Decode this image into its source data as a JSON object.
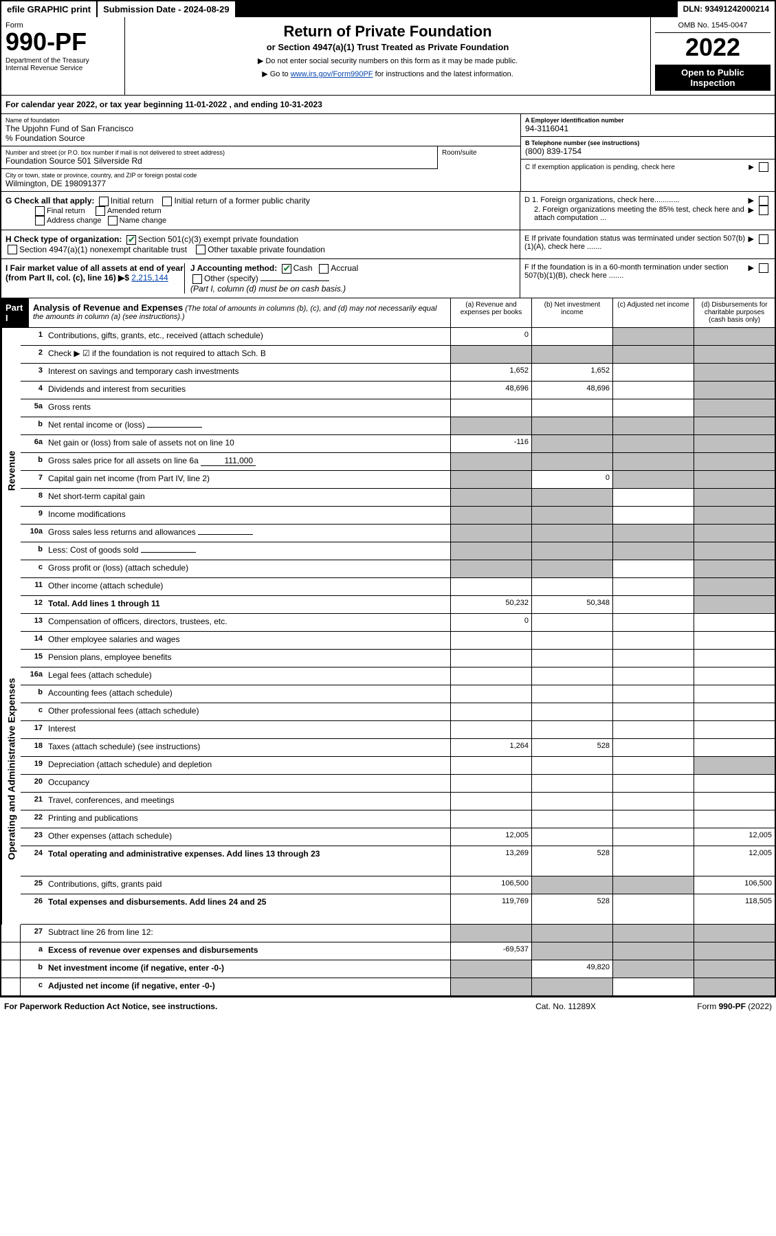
{
  "topbar": {
    "efile": "efile GRAPHIC print",
    "submission": "Submission Date - 2024-08-29",
    "dln": "DLN: 93491242000214"
  },
  "header": {
    "form_label": "Form",
    "form_num": "990-PF",
    "dept": "Department of the Treasury\nInternal Revenue Service",
    "title": "Return of Private Foundation",
    "subtitle": "or Section 4947(a)(1) Trust Treated as Private Foundation",
    "note1": "▶ Do not enter social security numbers on this form as it may be made public.",
    "note2_pre": "▶ Go to ",
    "note2_link": "www.irs.gov/Form990PF",
    "note2_post": " for instructions and the latest information.",
    "omb": "OMB No. 1545-0047",
    "year": "2022",
    "inspect": "Open to Public Inspection"
  },
  "cal_year": "For calendar year 2022, or tax year beginning 11-01-2022          , and ending 10-31-2023",
  "info": {
    "name_label": "Name of foundation",
    "name": "The Upjohn Fund of San Francisco",
    "source": "% Foundation Source",
    "addr_label": "Number and street (or P.O. box number if mail is not delivered to street address)",
    "addr": "Foundation Source 501 Silverside Rd",
    "room_label": "Room/suite",
    "city_label": "City or town, state or province, country, and ZIP or foreign postal code",
    "city": "Wilmington, DE  198091377",
    "ein_label": "A Employer identification number",
    "ein": "94-3116041",
    "phone_label": "B Telephone number (see instructions)",
    "phone": "(800) 839-1754",
    "c_label": "C If exemption application is pending, check here"
  },
  "checks": {
    "g_label": "G Check all that apply:",
    "g1": "Initial return",
    "g2": "Initial return of a former public charity",
    "g3": "Final return",
    "g4": "Amended return",
    "g5": "Address change",
    "g6": "Name change",
    "h_label": "H Check type of organization:",
    "h1": "Section 501(c)(3) exempt private foundation",
    "h2": "Section 4947(a)(1) nonexempt charitable trust",
    "h3": "Other taxable private foundation",
    "i_label": "I Fair market value of all assets at end of year (from Part II, col. (c), line 16) ▶$ ",
    "i_val": "2,215,144",
    "j_label": "J Accounting method:",
    "j1": "Cash",
    "j2": "Accrual",
    "j3": "Other (specify)",
    "j_note": "(Part I, column (d) must be on cash basis.)",
    "d1": "D 1. Foreign organizations, check here............",
    "d2": "2. Foreign organizations meeting the 85% test, check here and attach computation ...",
    "e": "E  If private foundation status was terminated under section 507(b)(1)(A), check here .......",
    "f": "F  If the foundation is in a 60-month termination under section 507(b)(1)(B), check here ......."
  },
  "part1": {
    "label": "Part I",
    "title": "Analysis of Revenue and Expenses",
    "title_note": "(The total of amounts in columns (b), (c), and (d) may not necessarily equal the amounts in column (a) (see instructions).)",
    "col_a": "(a) Revenue and expenses per books",
    "col_b": "(b) Net investment income",
    "col_c": "(c) Adjusted net income",
    "col_d": "(d) Disbursements for charitable purposes (cash basis only)"
  },
  "sections": {
    "revenue": "Revenue",
    "expenses": "Operating and Administrative Expenses"
  },
  "lines": [
    {
      "n": "1",
      "d": "Contributions, gifts, grants, etc., received (attach schedule)",
      "a": "0",
      "b": "",
      "c": "s",
      "ds": "s"
    },
    {
      "n": "2",
      "d": "Check ▶ ☑ if the foundation is not required to attach Sch. B",
      "a": "s",
      "b": "s",
      "c": "s",
      "ds": "s",
      "nodots": true
    },
    {
      "n": "3",
      "d": "Interest on savings and temporary cash investments",
      "a": "1,652",
      "b": "1,652",
      "c": "",
      "ds": "s"
    },
    {
      "n": "4",
      "d": "Dividends and interest from securities",
      "a": "48,696",
      "b": "48,696",
      "c": "",
      "ds": "s"
    },
    {
      "n": "5a",
      "d": "Gross rents",
      "a": "",
      "b": "",
      "c": "",
      "ds": "s"
    },
    {
      "n": "b",
      "d": "Net rental income or (loss)",
      "a": "s",
      "b": "s",
      "c": "s",
      "ds": "s",
      "inline": true
    },
    {
      "n": "6a",
      "d": "Net gain or (loss) from sale of assets not on line 10",
      "a": "-116",
      "b": "s",
      "c": "s",
      "ds": "s"
    },
    {
      "n": "b",
      "d": "Gross sales price for all assets on line 6a",
      "a": "s",
      "b": "s",
      "c": "s",
      "ds": "s",
      "inline": true,
      "inline_val": "111,000"
    },
    {
      "n": "7",
      "d": "Capital gain net income (from Part IV, line 2)",
      "a": "s",
      "b": "0",
      "c": "s",
      "ds": "s"
    },
    {
      "n": "8",
      "d": "Net short-term capital gain",
      "a": "s",
      "b": "s",
      "c": "",
      "ds": "s"
    },
    {
      "n": "9",
      "d": "Income modifications",
      "a": "s",
      "b": "s",
      "c": "",
      "ds": "s"
    },
    {
      "n": "10a",
      "d": "Gross sales less returns and allowances",
      "a": "s",
      "b": "s",
      "c": "s",
      "ds": "s",
      "inline": true
    },
    {
      "n": "b",
      "d": "Less: Cost of goods sold",
      "a": "s",
      "b": "s",
      "c": "s",
      "ds": "s",
      "inline": true
    },
    {
      "n": "c",
      "d": "Gross profit or (loss) (attach schedule)",
      "a": "s",
      "b": "s",
      "c": "",
      "ds": "s"
    },
    {
      "n": "11",
      "d": "Other income (attach schedule)",
      "a": "",
      "b": "",
      "c": "",
      "ds": "s"
    },
    {
      "n": "12",
      "d": "Total. Add lines 1 through 11",
      "a": "50,232",
      "b": "50,348",
      "c": "",
      "ds": "s",
      "bold": true
    }
  ],
  "exp_lines": [
    {
      "n": "13",
      "d": "Compensation of officers, directors, trustees, etc.",
      "a": "0",
      "b": "",
      "c": "",
      "ds": ""
    },
    {
      "n": "14",
      "d": "Other employee salaries and wages",
      "a": "",
      "b": "",
      "c": "",
      "ds": ""
    },
    {
      "n": "15",
      "d": "Pension plans, employee benefits",
      "a": "",
      "b": "",
      "c": "",
      "ds": ""
    },
    {
      "n": "16a",
      "d": "Legal fees (attach schedule)",
      "a": "",
      "b": "",
      "c": "",
      "ds": ""
    },
    {
      "n": "b",
      "d": "Accounting fees (attach schedule)",
      "a": "",
      "b": "",
      "c": "",
      "ds": ""
    },
    {
      "n": "c",
      "d": "Other professional fees (attach schedule)",
      "a": "",
      "b": "",
      "c": "",
      "ds": ""
    },
    {
      "n": "17",
      "d": "Interest",
      "a": "",
      "b": "",
      "c": "",
      "ds": ""
    },
    {
      "n": "18",
      "d": "Taxes (attach schedule) (see instructions)",
      "a": "1,264",
      "b": "528",
      "c": "",
      "ds": ""
    },
    {
      "n": "19",
      "d": "Depreciation (attach schedule) and depletion",
      "a": "",
      "b": "",
      "c": "",
      "ds": "s"
    },
    {
      "n": "20",
      "d": "Occupancy",
      "a": "",
      "b": "",
      "c": "",
      "ds": ""
    },
    {
      "n": "21",
      "d": "Travel, conferences, and meetings",
      "a": "",
      "b": "",
      "c": "",
      "ds": ""
    },
    {
      "n": "22",
      "d": "Printing and publications",
      "a": "",
      "b": "",
      "c": "",
      "ds": ""
    },
    {
      "n": "23",
      "d": "Other expenses (attach schedule)",
      "a": "12,005",
      "b": "",
      "c": "",
      "ds": "12,005"
    },
    {
      "n": "24",
      "d": "Total operating and administrative expenses. Add lines 13 through 23",
      "a": "13,269",
      "b": "528",
      "c": "",
      "ds": "12,005",
      "bold": true,
      "tall": true
    },
    {
      "n": "25",
      "d": "Contributions, gifts, grants paid",
      "a": "106,500",
      "b": "s",
      "c": "s",
      "ds": "106,500"
    },
    {
      "n": "26",
      "d": "Total expenses and disbursements. Add lines 24 and 25",
      "a": "119,769",
      "b": "528",
      "c": "",
      "ds": "118,505",
      "bold": true,
      "tall": true
    }
  ],
  "sub_lines": [
    {
      "n": "27",
      "d": "Subtract line 26 from line 12:",
      "a": "s",
      "b": "s",
      "c": "s",
      "ds": "s"
    },
    {
      "n": "a",
      "d": "Excess of revenue over expenses and disbursements",
      "a": "-69,537",
      "b": "s",
      "c": "s",
      "ds": "s",
      "bold": true
    },
    {
      "n": "b",
      "d": "Net investment income (if negative, enter -0-)",
      "a": "s",
      "b": "49,820",
      "c": "s",
      "ds": "s",
      "bold": true
    },
    {
      "n": "c",
      "d": "Adjusted net income (if negative, enter -0-)",
      "a": "s",
      "b": "s",
      "c": "",
      "ds": "s",
      "bold": true
    }
  ],
  "footer": {
    "left": "For Paperwork Reduction Act Notice, see instructions.",
    "mid": "Cat. No. 11289X",
    "right": "Form 990-PF (2022)"
  }
}
